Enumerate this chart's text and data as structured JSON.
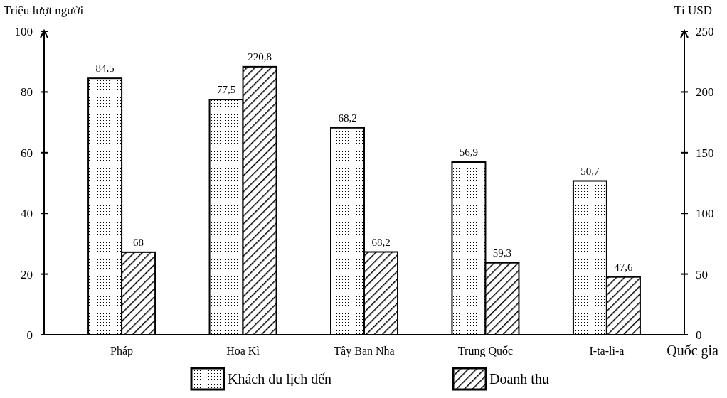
{
  "chart_data": {
    "type": "bar",
    "categories": [
      "Pháp",
      "Hoa Kì",
      "Tây Ban Nha",
      "Trung Quốc",
      "I-ta-li-a"
    ],
    "xlabel": "Quốc gia",
    "ylabel": "Triệu lượt người",
    "y2label": "Tỉ USD",
    "ylim": [
      0,
      100
    ],
    "yticks": [
      0,
      20,
      40,
      60,
      80,
      100
    ],
    "y2lim": [
      0,
      250
    ],
    "y2ticks": [
      0,
      50,
      100,
      150,
      200,
      250
    ],
    "legend": "bottom",
    "series": [
      {
        "name": "Khách du lịch đến",
        "color": "#000000",
        "values": [
          84.5,
          77.5,
          68.2,
          56.9,
          50.7
        ],
        "value_labels": [
          "84,5",
          "77,5",
          "68,2",
          "56,9",
          "50,7"
        ]
      },
      {
        "name": "Doanh thu",
        "color": "#000000",
        "axis": "y2",
        "values": [
          68,
          220.8,
          68.2,
          59.3,
          47.6
        ],
        "value_labels": [
          "68",
          "220,8",
          "68,2",
          "59,3",
          "47,6"
        ]
      }
    ]
  }
}
